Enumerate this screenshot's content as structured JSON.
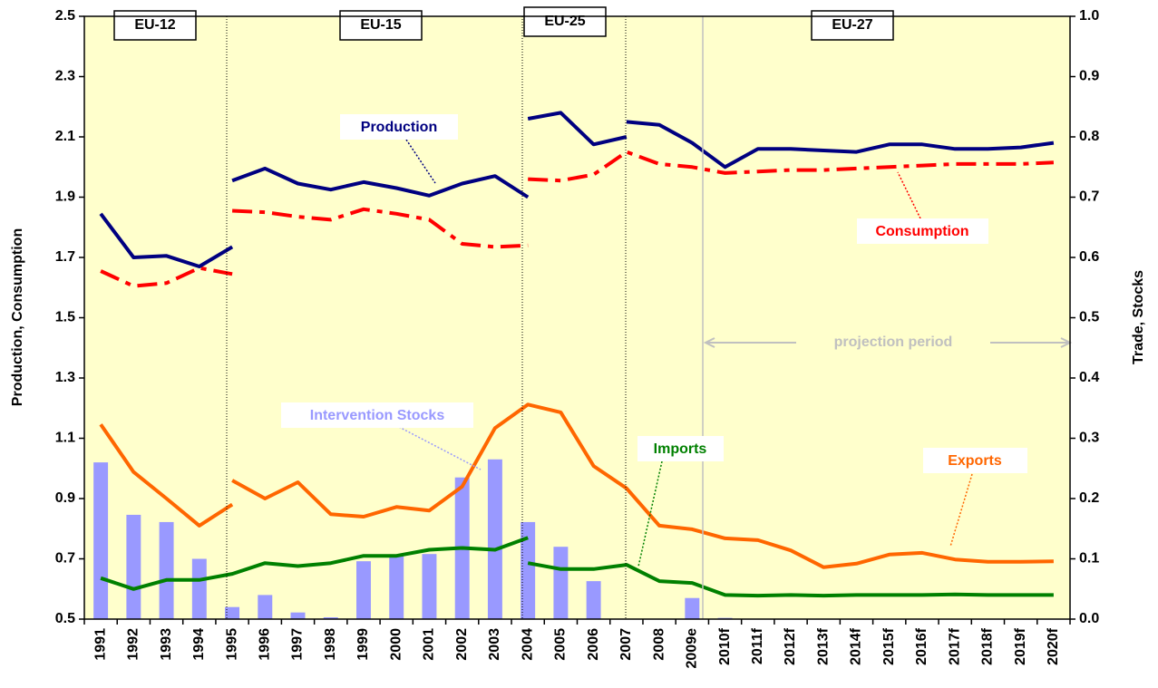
{
  "chart_data": {
    "type": "line",
    "background": "#ffffcc",
    "ylabel": "Production, Consumption",
    "y2label": "Trade, Stocks",
    "categories": [
      "1991",
      "1992",
      "1993",
      "1994",
      "1995",
      "1996",
      "1997",
      "1998",
      "1999",
      "2000",
      "2001",
      "2002",
      "2003",
      "2004",
      "2005",
      "2006",
      "2007",
      "2008",
      "2009e",
      "2010f",
      "2011f",
      "2012f",
      "2013f",
      "2014f",
      "2015f",
      "2016f",
      "2017f",
      "2018f",
      "2019f",
      "2020f"
    ],
    "ylim": [
      0.5,
      2.5
    ],
    "yticks": [
      0.5,
      0.7,
      0.9,
      1.1,
      1.3,
      1.5,
      1.7,
      1.9,
      2.1,
      2.3,
      2.5
    ],
    "y2lim": [
      0,
      1
    ],
    "y2ticks": [
      {
        "value": 0,
        "label": "0.0"
      },
      0.1,
      0.2,
      0.3,
      0.4,
      0.5,
      0.6,
      0.7,
      0.8,
      0.9,
      {
        "value": 1,
        "label": "1.0"
      }
    ],
    "annotations": [
      "EU-12",
      "EU-15",
      "EU-25",
      "EU-27",
      "projection period"
    ],
    "series": [
      {
        "name": "Intervention Stocks",
        "type": "bar",
        "axis": "y2",
        "color": "#9999ff",
        "values": [
          0.26,
          0.173,
          0.161,
          0.1,
          0.02,
          0.04,
          0.011,
          0.003,
          0.096,
          0.105,
          0.108,
          0.235,
          0.265,
          0.161,
          0.12,
          0.063,
          null,
          null,
          0.035,
          0.002,
          null,
          null,
          null,
          null,
          null,
          null,
          null,
          null,
          null,
          null
        ]
      },
      {
        "name": "Imports",
        "axis": "y2",
        "color": "#008000",
        "style": "solid",
        "pieces": [
          {
            "values": [
              0.068,
              0.05,
              0.065,
              0.065,
              0.075,
              0.093,
              0.088,
              0.093,
              0.105,
              0.105,
              0.115,
              0.118,
              0.115,
              0.135,
              null,
              null,
              null,
              null,
              null,
              null,
              null,
              null,
              null,
              null,
              null,
              null,
              null,
              null,
              null,
              null
            ]
          },
          {
            "values": [
              null,
              null,
              null,
              null,
              null,
              null,
              null,
              null,
              null,
              null,
              null,
              null,
              null,
              0.093,
              0.083,
              0.083,
              0.09,
              0.063,
              0.06,
              0.04,
              0.039,
              0.04,
              0.039,
              0.04,
              0.04,
              0.04,
              0.041,
              0.04,
              0.04,
              0.04
            ]
          }
        ]
      },
      {
        "name": "Exports",
        "axis": "y2",
        "color": "#ff6600",
        "style": "solid",
        "pieces": [
          {
            "values": [
              0.323,
              0.244,
              0.2,
              0.155,
              0.19,
              null,
              null,
              null,
              null,
              null,
              null,
              null,
              null,
              null,
              null,
              null,
              null,
              null,
              null,
              null,
              null,
              null,
              null,
              null,
              null,
              null,
              null,
              null,
              null,
              null
            ]
          },
          {
            "values": [
              null,
              null,
              null,
              null,
              0.23,
              0.2,
              0.227,
              0.174,
              0.17,
              0.186,
              0.18,
              0.22,
              0.317,
              0.356,
              0.343,
              0.254,
              0.217,
              0.155,
              0.149,
              0.134,
              0.131,
              0.114,
              0.086,
              0.092,
              0.107,
              0.11,
              0.099,
              0.095,
              0.095,
              0.096
            ]
          }
        ]
      },
      {
        "name": "Consumption",
        "axis": "y",
        "color": "#ff0000",
        "style": "dashdot",
        "pieces": [
          {
            "values": [
              1.655,
              1.605,
              1.615,
              1.665,
              1.645,
              null,
              null,
              null,
              null,
              null,
              null,
              null,
              null,
              null,
              null,
              null,
              null,
              null,
              null,
              null,
              null,
              null,
              null,
              null,
              null,
              null,
              null,
              null,
              null,
              null
            ]
          },
          {
            "values": [
              null,
              null,
              null,
              null,
              1.855,
              1.85,
              1.835,
              1.825,
              1.86,
              1.845,
              1.825,
              1.745,
              1.735,
              1.74,
              null,
              null,
              null,
              null,
              null,
              null,
              null,
              null,
              null,
              null,
              null,
              null,
              null,
              null,
              null,
              null
            ]
          },
          {
            "values": [
              null,
              null,
              null,
              null,
              null,
              null,
              null,
              null,
              null,
              null,
              null,
              null,
              null,
              1.96,
              1.955,
              1.975,
              2.05,
              2.01,
              2.0,
              1.98,
              1.985,
              1.99,
              1.99,
              1.995,
              2.0,
              2.005,
              2.01,
              2.01,
              2.01,
              2.015
            ]
          }
        ]
      },
      {
        "name": "Production",
        "axis": "y",
        "color": "#000080",
        "style": "solid",
        "pieces": [
          {
            "values": [
              1.845,
              1.7,
              1.705,
              1.67,
              1.735,
              null,
              null,
              null,
              null,
              null,
              null,
              null,
              null,
              null,
              null,
              null,
              null,
              null,
              null,
              null,
              null,
              null,
              null,
              null,
              null,
              null,
              null,
              null,
              null,
              null
            ]
          },
          {
            "values": [
              null,
              null,
              null,
              null,
              1.955,
              1.995,
              1.945,
              1.925,
              1.95,
              1.93,
              1.905,
              1.945,
              1.97,
              1.9,
              null,
              null,
              null,
              null,
              null,
              null,
              null,
              null,
              null,
              null,
              null,
              null,
              null,
              null,
              null,
              null
            ]
          },
          {
            "values": [
              null,
              null,
              null,
              null,
              null,
              null,
              null,
              null,
              null,
              null,
              null,
              null,
              null,
              2.16,
              2.18,
              2.075,
              2.1,
              null,
              null,
              null,
              null,
              null,
              null,
              null,
              null,
              null,
              null,
              null,
              null,
              null
            ]
          },
          {
            "values": [
              null,
              null,
              null,
              null,
              null,
              null,
              null,
              null,
              null,
              null,
              null,
              null,
              null,
              null,
              null,
              null,
              2.15,
              2.14,
              2.08,
              2.0,
              2.06,
              2.06,
              2.055,
              2.05,
              2.075,
              2.075,
              2.06,
              2.06,
              2.065,
              2.08
            ]
          }
        ]
      }
    ]
  }
}
